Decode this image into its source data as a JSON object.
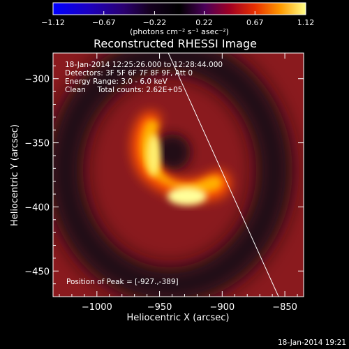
{
  "chart_data": {
    "type": "heatmap",
    "title": "Reconstructed RHESSI Image",
    "xlabel": "Heliocentric X (arcsec)",
    "ylabel": "Heliocentric Y (arcsec)",
    "xlim": [
      -1035,
      -835
    ],
    "ylim": [
      -470,
      -280
    ],
    "x_ticks": [
      -1000,
      -950,
      -900,
      -850
    ],
    "y_ticks": [
      -300,
      -350,
      -400,
      -450
    ],
    "x_tick_labels": [
      "−1000",
      "−950",
      "−900",
      "−850"
    ],
    "y_tick_labels": [
      "−300",
      "−350",
      "−400",
      "−450"
    ],
    "colorbar": {
      "min": -1.12,
      "max": 1.12,
      "ticks": [
        -1.12,
        -0.67,
        -0.22,
        0.22,
        0.67,
        1.12
      ],
      "tick_labels": [
        "−1.12",
        "−0.67",
        "−0.22",
        "0.22",
        "0.67",
        "1.12"
      ],
      "unit_label": "(photons cm⁻² s⁻¹ asec⁻²)"
    },
    "annotations": [
      "18-Jan-2014 12:25:26.000 to 12:28:44.000",
      "Detectors: 3F 5F 6F 7F 8F 9F, Att 0",
      "Energy Range: 3.0 - 6.0 keV",
      "Clean     Total counts: 2.62E+05"
    ],
    "peak_label": "Position of Peak = [-927.,-389]",
    "peak": {
      "x": -927,
      "y": -389
    },
    "limb_line": [
      {
        "x": -943,
        "y": -280
      },
      {
        "x": -855,
        "y": -470
      }
    ],
    "colors": {
      "background": "#000000",
      "text": "#ffffff",
      "limb": "#ffffff"
    }
  },
  "footer": {
    "timestamp": "18-Jan-2014 19:21"
  }
}
